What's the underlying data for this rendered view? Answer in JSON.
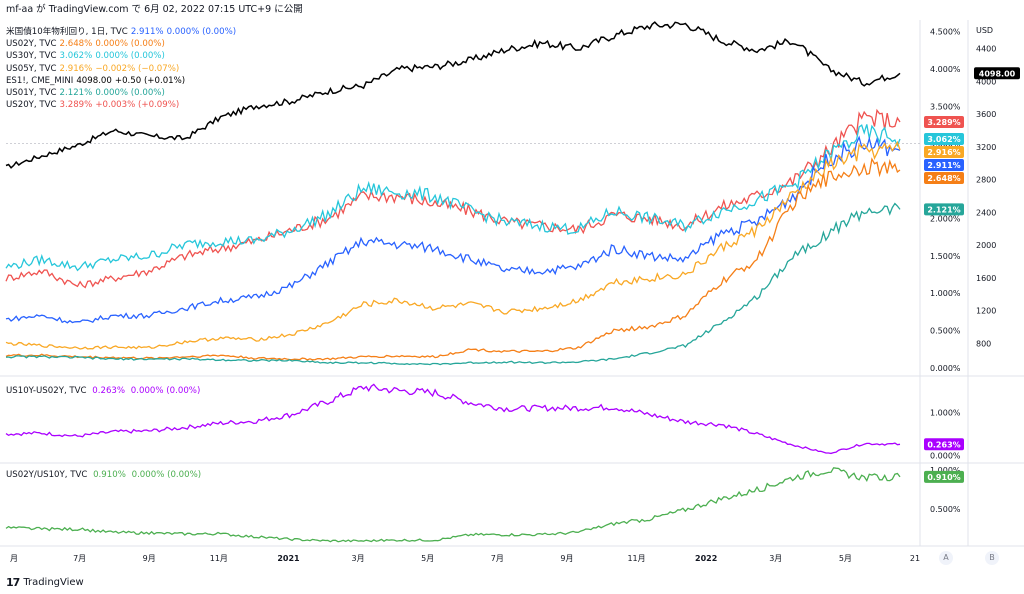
{
  "header": {
    "text": "mf-aa が TradingView.com で 6月 02, 2022 07:15 UTC+9 に公開"
  },
  "legend": [
    {
      "symbol": "米国債10年物利回り, 1日, TVC",
      "value": "2.911%",
      "change": "0.000% (0.00%)",
      "color": "#2962ff"
    },
    {
      "symbol": "US02Y, TVC",
      "value": "2.648%",
      "change": "0.000% (0.00%)",
      "color": "#f57f17"
    },
    {
      "symbol": "US30Y, TVC",
      "value": "3.062%",
      "change": "0.000% (0.00%)",
      "color": "#26c6da"
    },
    {
      "symbol": "US05Y, TVC",
      "value": "2.916%",
      "change": "−0.002% (−0.07%)",
      "color": "#f9a825"
    },
    {
      "symbol": "ES1!, CME_MINI",
      "value": "4098.00",
      "change": "+0.50 (+0.01%)",
      "color": "#000000"
    },
    {
      "symbol": "US01Y, TVC",
      "value": "2.121%",
      "change": "0.000% (0.00%)",
      "color": "#26a69a"
    },
    {
      "symbol": "US20Y, TVC",
      "value": "3.289%",
      "change": "+0.003% (+0.09%)",
      "color": "#ef5350"
    }
  ],
  "pane2_legend": {
    "symbol": "US10Y-US02Y, TVC",
    "value": "0.263%",
    "change": "0.000% (0.00%)",
    "color": "#aa00ff"
  },
  "pane3_legend": {
    "symbol": "US02Y/US10Y, TVC",
    "value": "0.910%",
    "change": "0.000% (0.00%)",
    "color": "#4caf50"
  },
  "footer": {
    "brand": "TradingView",
    "logo": "17"
  },
  "axis_buttons": {
    "a": "A",
    "b": "B"
  },
  "chart_data": [
    {
      "type": "line",
      "pane": "main",
      "x_ticks": [
        "月",
        "7月",
        "9月",
        "11月",
        "2021",
        "3月",
        "5月",
        "7月",
        "9月",
        "11月",
        "2022",
        "3月",
        "5月",
        "21"
      ],
      "left_axis_unit": "%",
      "left_axis_ticks": [
        "0.000%",
        "0.500%",
        "1.000%",
        "1.500%",
        "2.000%",
        "2.500%",
        "3.000%",
        "3.500%",
        "4.000%",
        "4.500%"
      ],
      "right_axis_unit": "USD",
      "right_axis_ticks": [
        800,
        1200,
        1600,
        2000,
        2400,
        2800,
        3200,
        3600,
        4000,
        4400
      ],
      "ylim_left": [
        0,
        4.6
      ],
      "ylim_right": [
        500,
        4700
      ],
      "x_dates": [
        "2020-05",
        "2020-06",
        "2020-07",
        "2020-08",
        "2020-09",
        "2020-10",
        "2020-11",
        "2020-12",
        "2021-01",
        "2021-02",
        "2021-03",
        "2021-04",
        "2021-05",
        "2021-06",
        "2021-07",
        "2021-08",
        "2021-09",
        "2021-10",
        "2021-11",
        "2021-12",
        "2022-01",
        "2022-02",
        "2022-03",
        "2022-04",
        "2022-05",
        "2022-06"
      ],
      "series": [
        {
          "name": "ES1!",
          "axis": "right",
          "color": "#000000",
          "last_label": "4098.00",
          "values": [
            2950,
            3090,
            3220,
            3400,
            3330,
            3300,
            3560,
            3700,
            3760,
            3880,
            3950,
            4150,
            4180,
            4260,
            4390,
            4470,
            4400,
            4560,
            4680,
            4700,
            4500,
            4380,
            4500,
            4150,
            3980,
            4098
          ]
        },
        {
          "name": "US20Y",
          "axis": "left",
          "color": "#ef5350",
          "last_label": "3.289%",
          "values": [
            1.2,
            1.3,
            1.1,
            1.2,
            1.3,
            1.5,
            1.6,
            1.7,
            1.85,
            2.0,
            2.3,
            2.3,
            2.2,
            2.1,
            1.95,
            1.9,
            1.85,
            2.05,
            2.0,
            1.9,
            2.15,
            2.3,
            2.5,
            2.9,
            3.35,
            3.289
          ]
        },
        {
          "name": "US30Y",
          "axis": "left",
          "color": "#26c6da",
          "last_label": "3.062%",
          "values": [
            1.35,
            1.45,
            1.35,
            1.45,
            1.5,
            1.65,
            1.7,
            1.7,
            1.85,
            2.05,
            2.4,
            2.35,
            2.3,
            2.1,
            1.95,
            1.9,
            1.85,
            2.1,
            2.0,
            1.9,
            2.1,
            2.25,
            2.45,
            2.85,
            3.15,
            3.062
          ]
        },
        {
          "name": "米国債10年物利回り",
          "axis": "left",
          "color": "#2962ff",
          "last_label": "2.911%",
          "values": [
            0.65,
            0.7,
            0.6,
            0.7,
            0.7,
            0.8,
            0.9,
            0.95,
            1.1,
            1.4,
            1.7,
            1.65,
            1.6,
            1.45,
            1.3,
            1.3,
            1.35,
            1.6,
            1.5,
            1.45,
            1.8,
            1.95,
            2.3,
            2.8,
            3.0,
            2.911
          ]
        },
        {
          "name": "US05Y",
          "axis": "left",
          "color": "#f9a825",
          "last_label": "2.916%",
          "values": [
            0.33,
            0.3,
            0.27,
            0.28,
            0.27,
            0.35,
            0.4,
            0.38,
            0.45,
            0.6,
            0.85,
            0.9,
            0.8,
            0.85,
            0.75,
            0.8,
            0.9,
            1.15,
            1.2,
            1.25,
            1.6,
            1.85,
            2.3,
            2.7,
            2.9,
            2.916
          ]
        },
        {
          "name": "US02Y",
          "axis": "left",
          "color": "#f57f17",
          "last_label": "2.648%",
          "values": [
            0.17,
            0.17,
            0.15,
            0.14,
            0.13,
            0.15,
            0.17,
            0.13,
            0.12,
            0.12,
            0.15,
            0.16,
            0.15,
            0.25,
            0.22,
            0.22,
            0.27,
            0.5,
            0.55,
            0.7,
            1.15,
            1.45,
            2.2,
            2.55,
            2.7,
            2.648
          ]
        },
        {
          "name": "US01Y",
          "axis": "left",
          "color": "#26a69a",
          "last_label": "2.121%",
          "values": [
            0.15,
            0.15,
            0.14,
            0.12,
            0.12,
            0.12,
            0.11,
            0.1,
            0.1,
            0.07,
            0.07,
            0.06,
            0.05,
            0.07,
            0.08,
            0.07,
            0.08,
            0.12,
            0.2,
            0.3,
            0.6,
            0.95,
            1.5,
            1.8,
            2.1,
            2.121
          ]
        }
      ]
    },
    {
      "type": "line",
      "pane": "spread",
      "axis_ticks": [
        "0.000%",
        "1.000%"
      ],
      "ylim": [
        -0.1,
        1.7
      ],
      "x_dates": [
        "2020-05",
        "2020-06",
        "2020-07",
        "2020-08",
        "2020-09",
        "2020-10",
        "2020-11",
        "2020-12",
        "2021-01",
        "2021-02",
        "2021-03",
        "2021-04",
        "2021-05",
        "2021-06",
        "2021-07",
        "2021-08",
        "2021-09",
        "2021-10",
        "2021-11",
        "2021-12",
        "2022-01",
        "2022-02",
        "2022-03",
        "2022-04",
        "2022-05",
        "2022-06"
      ],
      "series": [
        {
          "name": "US10Y-US02Y",
          "color": "#aa00ff",
          "last_label": "0.263%",
          "values": [
            0.5,
            0.52,
            0.45,
            0.55,
            0.57,
            0.65,
            0.75,
            0.8,
            0.95,
            1.25,
            1.58,
            1.5,
            1.45,
            1.22,
            1.08,
            1.1,
            1.1,
            1.12,
            0.95,
            0.78,
            0.72,
            0.5,
            0.25,
            0.05,
            0.28,
            0.263
          ]
        }
      ]
    },
    {
      "type": "line",
      "pane": "ratio",
      "axis_ticks": [
        "0.500%",
        "1.000%"
      ],
      "ylim": [
        0.05,
        1.05
      ],
      "x_dates": [
        "2020-05",
        "2020-06",
        "2020-07",
        "2020-08",
        "2020-09",
        "2020-10",
        "2020-11",
        "2020-12",
        "2021-01",
        "2021-02",
        "2021-03",
        "2021-04",
        "2021-05",
        "2021-06",
        "2021-07",
        "2021-08",
        "2021-09",
        "2021-10",
        "2021-11",
        "2021-12",
        "2022-01",
        "2022-02",
        "2022-03",
        "2022-04",
        "2022-05",
        "2022-06"
      ],
      "series": [
        {
          "name": "US02Y/US10Y",
          "color": "#4caf50",
          "last_label": "0.910%",
          "values": [
            0.26,
            0.24,
            0.24,
            0.2,
            0.19,
            0.18,
            0.18,
            0.14,
            0.11,
            0.09,
            0.09,
            0.1,
            0.1,
            0.17,
            0.17,
            0.17,
            0.2,
            0.31,
            0.37,
            0.49,
            0.63,
            0.74,
            0.9,
            1.0,
            0.9,
            0.91
          ]
        }
      ]
    }
  ]
}
